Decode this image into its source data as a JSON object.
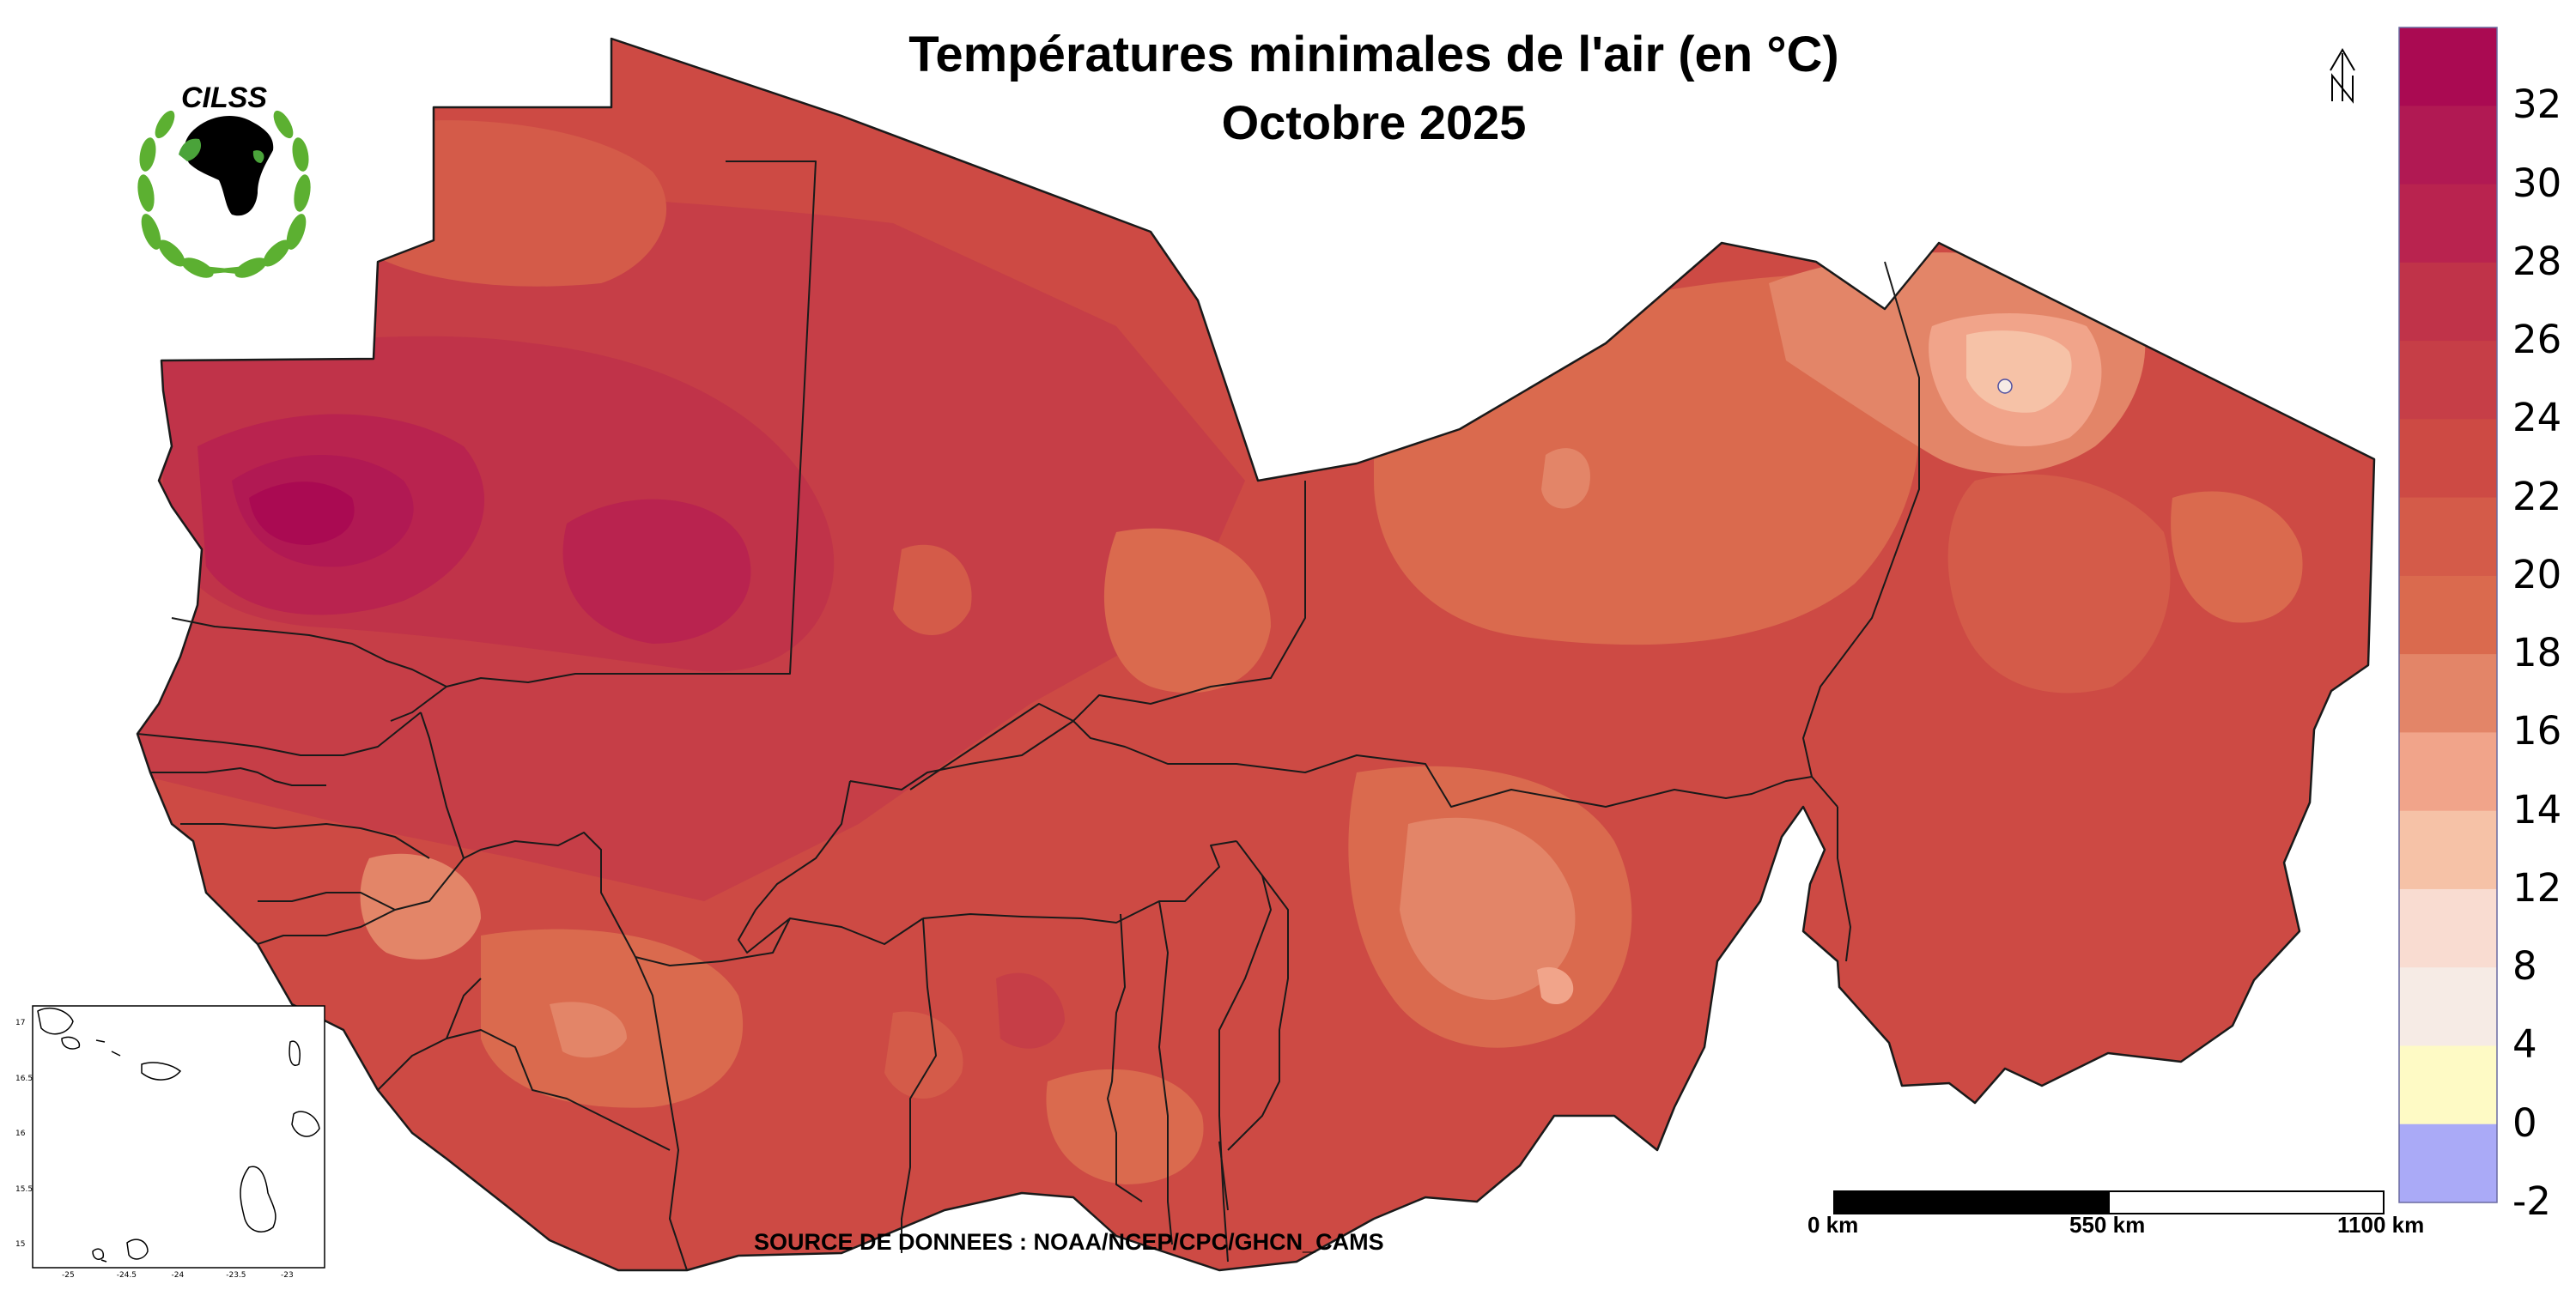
{
  "title": {
    "line1": "Températures minimales de l'air (en °C)",
    "line2": "Octobre 2025"
  },
  "logo": {
    "text": "CILSS",
    "colors": {
      "wreath": "#5cb031",
      "africa": "#000000",
      "accent": "#4aa33a"
    }
  },
  "source": "SOURCE DE DONNEES : NOAA/NCEP/CPC/GHCN_CAMS",
  "north_arrow": {
    "icon": "north-arrow-icon"
  },
  "scale_bar": {
    "labels": [
      "0 km",
      "550 km",
      "1100 km"
    ]
  },
  "legend": {
    "labels": [
      "32",
      "30",
      "28",
      "26",
      "24",
      "22",
      "20",
      "18",
      "16",
      "14",
      "12",
      "8",
      "4",
      "0",
      "-2"
    ],
    "classes": [
      {
        "min": -2,
        "max": 0,
        "color": "#aaaaf7"
      },
      {
        "min": 0,
        "max": 4,
        "color": "#fefac5"
      },
      {
        "min": 4,
        "max": 8,
        "color": "#f6ebe5"
      },
      {
        "min": 8,
        "max": 12,
        "color": "#f9dcd1"
      },
      {
        "min": 12,
        "max": 14,
        "color": "#f6c2a7"
      },
      {
        "min": 14,
        "max": 16,
        "color": "#f1a48a"
      },
      {
        "min": 16,
        "max": 18,
        "color": "#e38568"
      },
      {
        "min": 18,
        "max": 20,
        "color": "#da6a4e"
      },
      {
        "min": 20,
        "max": 22,
        "color": "#d45b49"
      },
      {
        "min": 22,
        "max": 24,
        "color": "#cd4a44"
      },
      {
        "min": 24,
        "max": 26,
        "color": "#c63e47"
      },
      {
        "min": 26,
        "max": 28,
        "color": "#c03349"
      },
      {
        "min": 28,
        "max": 30,
        "color": "#b9234f"
      },
      {
        "min": 30,
        "max": 32,
        "color": "#b11953"
      },
      {
        "min": 32,
        "max": 34,
        "color": "#aa0a52"
      }
    ]
  },
  "inset": {
    "x_ticks": [
      "-25",
      "-24.5",
      "-24",
      "-23.5",
      "-23"
    ],
    "y_ticks": [
      "17",
      "16.5",
      "16",
      "15.5",
      "15"
    ]
  }
}
